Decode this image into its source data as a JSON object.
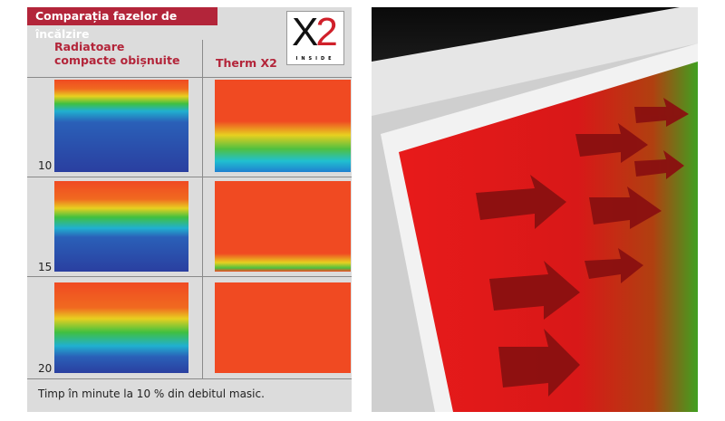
{
  "title": "Comparația fazelor de încălzire",
  "logo": {
    "main": "X2",
    "sub": "INSIDE"
  },
  "columns": {
    "left": [
      "Radiatoare",
      "compacte obișnuite"
    ],
    "right": "Therm X2"
  },
  "rows": [
    {
      "minutes": "10"
    },
    {
      "minutes": "15"
    },
    {
      "minutes": "20"
    }
  ],
  "footer": "Timp în minute la 10 % din debitul masic.",
  "colors": {
    "accent": "#b3253a",
    "hot": "#f04a22",
    "cold": "#2a3fa0"
  }
}
